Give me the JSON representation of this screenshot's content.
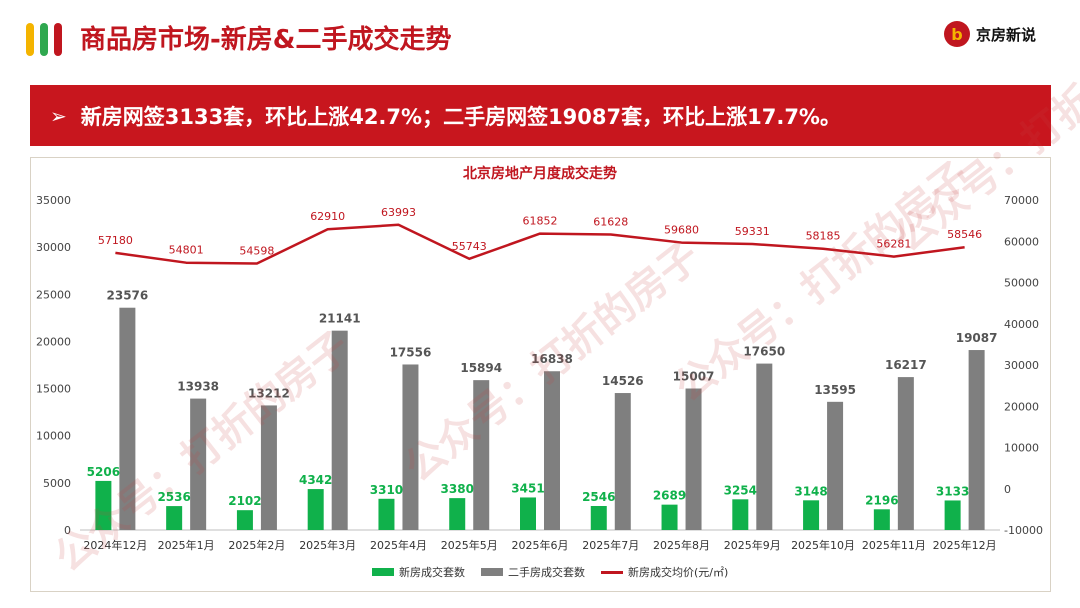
{
  "header": {
    "title": "商品房市场-新房&二手成交走势",
    "accent_colors": [
      "#f4b400",
      "#2fa84f",
      "#c0161f"
    ],
    "logo_mark": "b",
    "logo_text": "京房新说"
  },
  "banner": {
    "arrow": "➢",
    "text": "新房网签3133套，环比上涨42.7%；二手房网签19087套，环比上涨17.7%。"
  },
  "chart_data": {
    "type": "bar",
    "title": "北京房地产月度成交走势",
    "categories": [
      "2024年12月",
      "2025年1月",
      "2025年2月",
      "2025年3月",
      "2025年4月",
      "2025年5月",
      "2025年6月",
      "2025年7月",
      "2025年8月",
      "2025年9月",
      "2025年10月",
      "2025年11月",
      "2025年12月"
    ],
    "series": [
      {
        "name": "新房成交套数",
        "type": "bar",
        "axis": "left",
        "color": "#10b14b",
        "values": [
          5206,
          2536,
          2102,
          4342,
          3310,
          3380,
          3451,
          2546,
          2689,
          3254,
          3148,
          2196,
          3133
        ]
      },
      {
        "name": "二手房成交套数",
        "type": "bar",
        "axis": "left",
        "color": "#7f7f7f",
        "values": [
          23576,
          13938,
          13212,
          21141,
          17556,
          15894,
          16838,
          14526,
          15007,
          17650,
          13595,
          16217,
          19087
        ]
      },
      {
        "name": "新房成交均价(元/㎡)",
        "type": "line",
        "axis": "right",
        "color": "#c0161f",
        "values": [
          57180,
          54801,
          54598,
          62910,
          63993,
          55743,
          61852,
          61628,
          59680,
          59331,
          58185,
          56281,
          58546
        ]
      }
    ],
    "y_left": {
      "min": 0,
      "max": 35000,
      "ticks": [
        "0",
        "5000",
        "10000",
        "15000",
        "20000",
        "25000",
        "30000",
        "35000"
      ]
    },
    "y_right": {
      "min": -10000,
      "max": 70000,
      "ticks": [
        "-10000",
        "0",
        "10000",
        "20000",
        "30000",
        "40000",
        "50000",
        "60000",
        "70000"
      ]
    },
    "grid": false,
    "legend_position": "bottom"
  },
  "watermarks": [
    "公众号：打折的房子",
    "公众号：打折的房子",
    "公众号：打折的房子",
    "公众号：打折的房子"
  ]
}
